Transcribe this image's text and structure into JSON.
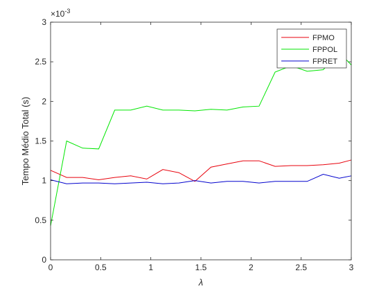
{
  "chart_data": {
    "type": "line",
    "title": "",
    "xlabel": "λ",
    "ylabel": "Tempo Médio Total (s)",
    "xlim": [
      0,
      3
    ],
    "ylim": [
      0,
      0.003
    ],
    "y_exponent_label": "×10",
    "y_exponent_power": "-3",
    "x_ticks": [
      0,
      0.5,
      1,
      1.5,
      2,
      2.5,
      3
    ],
    "x_tick_labels": [
      "0",
      "0.5",
      "1",
      "1.5",
      "2",
      "2.5",
      "3"
    ],
    "y_ticks": [
      0,
      0.0005,
      0.001,
      0.0015,
      0.002,
      0.0025,
      0.003
    ],
    "y_tick_labels": [
      "0",
      "0.5",
      "1",
      "1.5",
      "2",
      "2.5",
      "3"
    ],
    "grid": false,
    "legend_position": "top-right",
    "x": [
      0,
      0.16,
      0.32,
      0.48,
      0.64,
      0.8,
      0.96,
      1.12,
      1.28,
      1.44,
      1.6,
      1.76,
      1.92,
      2.08,
      2.24,
      2.4,
      2.56,
      2.72,
      2.88,
      3.0
    ],
    "series": [
      {
        "name": "FPMO",
        "color": "#e8000b",
        "values": [
          0.00113,
          0.00104,
          0.00104,
          0.00101,
          0.00104,
          0.00106,
          0.00102,
          0.00114,
          0.0011,
          0.00099,
          0.00117,
          0.00121,
          0.00125,
          0.00125,
          0.00118,
          0.00119,
          0.00119,
          0.0012,
          0.00122,
          0.00126
        ]
      },
      {
        "name": "FPPOL",
        "color": "#00e600",
        "values": [
          0.00043,
          0.0015,
          0.00141,
          0.0014,
          0.00189,
          0.00189,
          0.00194,
          0.00189,
          0.00189,
          0.00188,
          0.0019,
          0.00189,
          0.00193,
          0.00194,
          0.00237,
          0.00245,
          0.00238,
          0.0024,
          0.00262,
          0.00246
        ]
      },
      {
        "name": "FPRET",
        "color": "#0000cd",
        "values": [
          0.00101,
          0.00096,
          0.00097,
          0.00097,
          0.00096,
          0.00097,
          0.00098,
          0.00096,
          0.00097,
          0.001,
          0.00097,
          0.00099,
          0.00099,
          0.00097,
          0.00099,
          0.00099,
          0.00099,
          0.00108,
          0.00103,
          0.00106
        ]
      }
    ]
  }
}
